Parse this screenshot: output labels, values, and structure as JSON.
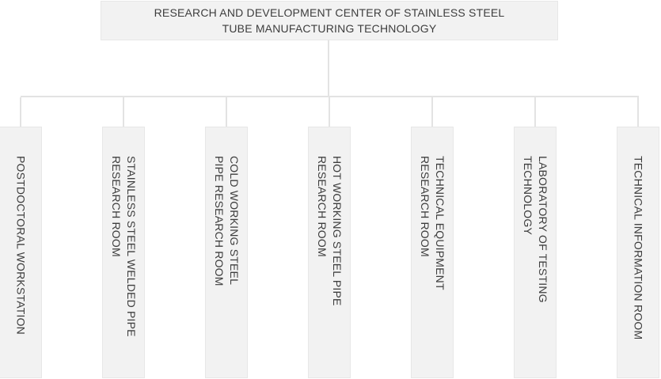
{
  "chart": {
    "type": "org-chart",
    "root": {
      "title": "RESEARCH AND DEVELOPMENT CENTER OF STAINLESS STEEL\nTUBE MANUFACTURING TECHNOLOGY"
    },
    "departments": [
      {
        "text": "POSTDOCTORAL WORKSTATION"
      },
      {
        "text": "STAINLESS STEEL WELDED PIPE\nRESEARCH ROOM"
      },
      {
        "text": "COLD WORKING STEEL\nPIPE RESEARCH ROOM"
      },
      {
        "text": "HOT WORKING STEEL PIPE\nRESEARCH ROOM"
      },
      {
        "text": "TECHNICAL EQUIPMENT\nRESEARCH ROOM"
      },
      {
        "text": "LABORATORY OF TESTING\nTECHNOLOGY"
      },
      {
        "text": "TECHNICAL INFORMATION ROOM"
      }
    ],
    "colors": {
      "node_fill": "#f2f2f2",
      "node_border": "#e7e7e7",
      "connector": "#e3e3e3",
      "text": "#3d3d3d",
      "background": "#ffffff"
    }
  }
}
